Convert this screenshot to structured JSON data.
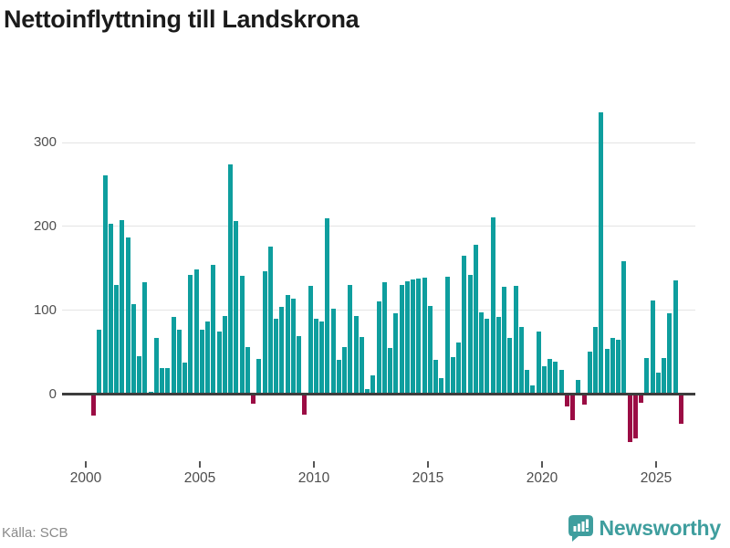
{
  "title": "Nettoinflyttning till Landskrona",
  "source": "Källa: SCB",
  "brand": {
    "name": "Newsworthy",
    "color": "#3f9e9e"
  },
  "colors": {
    "positive_bar": "#0e9e9e",
    "negative_bar": "#9b0c44",
    "axis_line": "#3d3d3d",
    "gridline": "#e4e4e4",
    "tick_label": "#4d4d4d",
    "source_text": "#8a8a8a",
    "title_text": "#1b1b1b"
  },
  "chart_data": {
    "type": "bar",
    "title": "Nettoinflyttning till Landskrona",
    "frequency": "quarterly",
    "x_start": "2000 Q1",
    "x_end": "2025 Q4",
    "x_tick_labels": [
      "2000",
      "2005",
      "2010",
      "2015",
      "2020",
      "2025"
    ],
    "y_ticks": [
      0,
      100,
      200,
      300
    ],
    "ylim": [
      -70,
      350
    ],
    "grid": true,
    "legend": false,
    "values": [
      -25,
      76,
      260,
      203,
      130,
      207,
      186,
      107,
      45,
      133,
      2,
      66,
      31,
      31,
      91,
      76,
      37,
      142,
      148,
      76,
      86,
      154,
      74,
      93,
      273,
      206,
      140,
      56,
      -11,
      41,
      146,
      175,
      89,
      103,
      118,
      113,
      69,
      -24,
      129,
      89,
      86,
      209,
      101,
      40,
      56,
      130,
      93,
      67,
      5,
      22,
      110,
      133,
      54,
      96,
      130,
      134,
      136,
      137,
      138,
      105,
      40,
      18,
      139,
      44,
      61,
      165,
      142,
      178,
      97,
      89,
      210,
      92,
      127,
      66,
      129,
      79,
      28,
      10,
      74,
      33,
      41,
      38,
      28,
      -14,
      -30,
      16,
      -12,
      50,
      79,
      335,
      53,
      66,
      64,
      158,
      -57,
      -52,
      -10,
      42,
      111,
      25,
      43,
      96,
      135,
      -35
    ]
  }
}
